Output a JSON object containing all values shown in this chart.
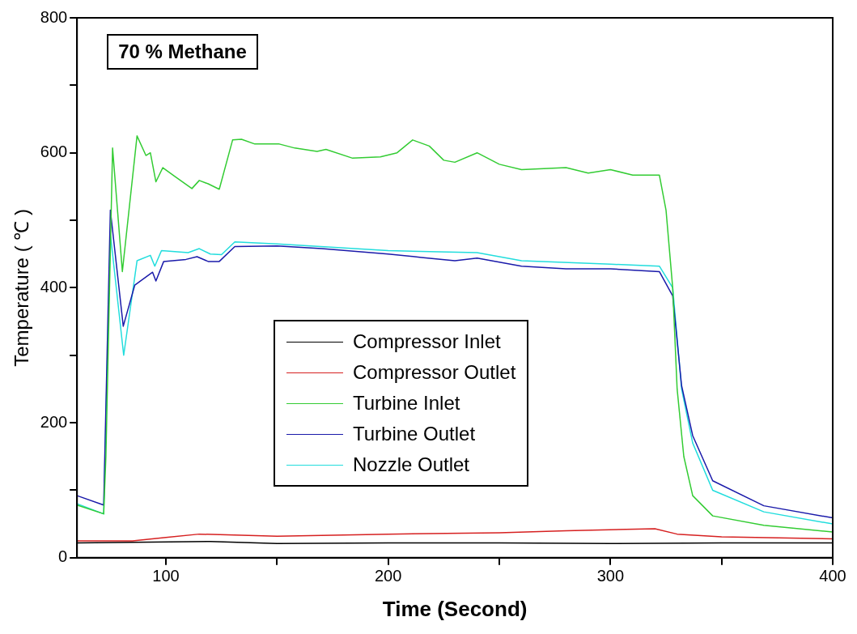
{
  "chart_data": {
    "type": "line",
    "xlabel": "Time (Second)",
    "ylabel": "Temperature ( ℃ )",
    "annotations": [
      "70 % Methane"
    ],
    "xlim": [
      60,
      400
    ],
    "xticks": [
      100,
      {
        "value": 150,
        "label": null
      },
      200,
      {
        "value": 250,
        "label": null
      },
      300,
      {
        "value": 350,
        "label": null
      },
      400
    ],
    "ylim": [
      0,
      800
    ],
    "yticks": [
      0,
      {
        "value": 100,
        "label": null
      },
      200,
      {
        "value": 300,
        "label": null
      },
      400,
      {
        "value": 500,
        "label": null
      },
      600,
      {
        "value": 700,
        "label": null
      },
      800
    ],
    "grid": false,
    "legend": "bottom",
    "marker": "none",
    "line_style": "solid",
    "series": [
      {
        "name": "Compressor Inlet",
        "color": "#000000",
        "x": [
          60,
          120,
          150,
          200,
          250,
          300,
          350,
          400
        ],
        "values": [
          22,
          24,
          21,
          22,
          22,
          21,
          22,
          22
        ]
      },
      {
        "name": "Compressor Outlet",
        "color": "#d62020",
        "x": [
          60,
          85,
          100,
          115,
          150,
          200,
          250,
          280,
          320,
          330,
          350,
          400
        ],
        "values": [
          25,
          25,
          30,
          35,
          32,
          35,
          37,
          40,
          43,
          35,
          31,
          28
        ]
      },
      {
        "name": "Turbine Inlet",
        "color": "#33cc33",
        "x": [
          60,
          72,
          73,
          76,
          80.4,
          87,
          91,
          93,
          95.5,
          98.6,
          104,
          111.7,
          115,
          119,
          124,
          130,
          134,
          140,
          151,
          158,
          168,
          172,
          184,
          196.5,
          204,
          211,
          218.5,
          225,
          230,
          240,
          250,
          260,
          280,
          290,
          300,
          310,
          322,
          325,
          328,
          330,
          333,
          337,
          346,
          369,
          400
        ],
        "values": [
          78,
          65,
          150,
          607,
          424,
          625,
          596,
          600,
          557,
          578,
          565,
          547,
          559,
          554,
          546,
          619,
          620,
          613,
          613,
          607,
          602,
          605,
          592,
          594,
          600,
          619,
          610,
          589,
          586,
          600,
          583,
          575,
          578,
          570,
          575,
          567,
          567,
          515,
          400,
          250,
          150,
          92,
          62,
          48,
          38
        ]
      },
      {
        "name": "Turbine Outlet",
        "color": "#1a1aaa",
        "x": [
          60,
          72,
          75,
          80.8,
          86,
          94,
          95.5,
          99,
          109,
          114,
          119,
          124,
          131,
          150,
          170,
          200,
          215,
          230,
          240,
          260,
          280,
          300,
          322,
          328,
          332,
          337,
          346,
          369,
          400
        ],
        "values": [
          92,
          78,
          515,
          343,
          404,
          423,
          410,
          439,
          442,
          446,
          439,
          439,
          461,
          462,
          458,
          450,
          445,
          440,
          444,
          432,
          428,
          428,
          424,
          388,
          255,
          181,
          114,
          77,
          59
        ]
      },
      {
        "name": "Nozzle Outlet",
        "color": "#22dddd",
        "x": [
          60,
          72,
          75,
          81,
          87,
          93,
          95,
          98,
          110,
          115,
          120,
          125,
          131,
          150,
          200,
          240,
          260,
          300,
          322,
          328,
          332,
          337,
          346,
          369,
          400
        ],
        "values": [
          80,
          65,
          480,
          300,
          440,
          448,
          432,
          455,
          452,
          458,
          450,
          449,
          468,
          465,
          455,
          452,
          440,
          435,
          432,
          400,
          250,
          170,
          100,
          68,
          50
        ]
      }
    ]
  }
}
